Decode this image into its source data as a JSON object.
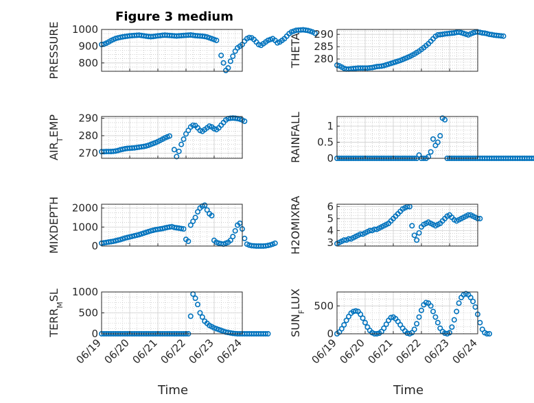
{
  "figure": {
    "title": "Figure 3 medium",
    "xlabel": "Time"
  },
  "style": {
    "marker_color": "#0072bd",
    "axis_color": "#262626",
    "grid_color": "#b0b0b0"
  },
  "chart_data": [
    {
      "type": "scatter",
      "ylabel": "PRESSURE",
      "xlim": [
        "06/19",
        "06/24"
      ],
      "ylim": [
        750,
        1000
      ],
      "yticks": [
        800,
        900,
        1000
      ],
      "x_start": "06/19",
      "x_step_days": 0.0833,
      "values": [
        910,
        912,
        918,
        925,
        933,
        940,
        946,
        950,
        953,
        956,
        958,
        960,
        962,
        963,
        964,
        965,
        966,
        964,
        962,
        960,
        958,
        957,
        958,
        960,
        962,
        963,
        965,
        966,
        965,
        964,
        963,
        962,
        961,
        962,
        963,
        964,
        965,
        966,
        967,
        965,
        963,
        962,
        961,
        960,
        958,
        955,
        950,
        945,
        940,
        935,
        null,
        845,
        800,
        755,
        770,
        810,
        840,
        870,
        890,
        900,
        910,
        930,
        945,
        952,
        950,
        940,
        925,
        910,
        905,
        915,
        925,
        935,
        940,
        945,
        935,
        920,
        925,
        935,
        945,
        960,
        975,
        985,
        990,
        995,
        996,
        997,
        998,
        996,
        994,
        990,
        985,
        978
      ]
    },
    {
      "type": "scatter",
      "ylabel": "THETA",
      "xlim": [
        "06/19",
        "06/24"
      ],
      "ylim": [
        275,
        292
      ],
      "yticks": [
        280,
        285,
        290
      ],
      "x_start": "06/19",
      "x_step_days": 0.0833,
      "values": [
        277.5,
        277.2,
        276.7,
        276.2,
        275.9,
        275.9,
        276.0,
        276.1,
        276.2,
        276.3,
        276.3,
        276.3,
        276.3,
        276.3,
        276.4,
        276.5,
        276.7,
        276.9,
        277.0,
        277.1,
        277.3,
        277.6,
        277.9,
        278.2,
        278.5,
        278.8,
        279.1,
        279.4,
        279.8,
        280.2,
        280.6,
        281.0,
        281.5,
        282.0,
        282.6,
        283.2,
        283.9,
        284.6,
        285.4,
        286.2,
        287.2,
        288.2,
        289.2,
        289.8,
        289.9,
        290.0,
        290.2,
        290.3,
        290.4,
        290.5,
        290.6,
        290.8,
        290.9,
        290.7,
        290.4,
        290.1,
        289.8,
        290.2,
        290.6,
        290.9,
        291.0,
        290.8,
        290.6,
        290.5,
        290.3,
        290.0,
        289.9,
        289.7,
        289.6,
        289.5,
        289.4,
        289.3
      ]
    },
    {
      "type": "scatter",
      "ylabel": "AIR_TEMP",
      "xlim": [
        "06/19",
        "06/24"
      ],
      "ylim": [
        267,
        291
      ],
      "yticks": [
        270,
        280,
        290
      ],
      "x_start": "06/19",
      "x_step_days": 0.0833,
      "values": [
        270.8,
        270.8,
        270.9,
        270.9,
        270.9,
        271.0,
        271.2,
        271.5,
        271.9,
        272.2,
        272.5,
        272.7,
        272.8,
        272.9,
        273.0,
        273.2,
        273.4,
        273.6,
        273.8,
        274.1,
        274.5,
        275.0,
        275.5,
        276.0,
        276.6,
        277.3,
        278.0,
        278.7,
        279.3,
        279.8,
        null,
        272.0,
        268.0,
        271.0,
        275.0,
        278.0,
        281.0,
        283.0,
        285.0,
        286.0,
        285.8,
        284.5,
        283.0,
        282.5,
        283.5,
        284.5,
        285.5,
        285.0,
        284.0,
        283.5,
        284.5,
        286.0,
        287.5,
        289.0,
        289.8,
        290.0,
        290.1,
        290.0,
        289.8,
        289.5,
        289.0,
        288.3
      ]
    },
    {
      "type": "scatter",
      "ylabel": "RAINFALL",
      "xlim": [
        "06/19",
        "06/24"
      ],
      "ylim": [
        0,
        1.3
      ],
      "yticks": [
        0,
        0.5,
        1
      ],
      "x_start": "06/19",
      "x_step_days": 0.0833,
      "values": [
        0,
        0,
        0,
        0,
        0,
        0,
        0,
        0,
        0,
        0,
        0,
        0,
        0,
        0,
        0,
        0,
        0,
        0,
        0,
        0,
        0,
        0,
        0,
        0,
        0,
        0,
        0,
        0,
        0,
        0,
        0,
        0,
        0,
        0,
        0,
        0.1,
        0,
        0,
        0,
        0.05,
        0.2,
        0.6,
        0.4,
        0.5,
        0.7,
        1.25,
        1.2,
        0,
        0,
        0,
        0,
        0,
        0,
        0,
        0,
        0,
        0,
        0,
        0,
        0,
        0,
        0,
        0,
        0,
        0,
        0,
        0,
        0,
        0,
        0,
        0,
        0,
        0,
        0,
        0,
        0,
        0,
        0,
        0,
        0,
        0,
        0,
        0,
        0,
        0,
        0,
        0,
        0,
        0,
        0,
        0,
        0,
        0,
        0,
        0,
        0,
        0,
        0
      ]
    },
    {
      "type": "scatter",
      "ylabel": "MIXDEPTH",
      "xlim": [
        "06/19",
        "06/24"
      ],
      "ylim": [
        0,
        2200
      ],
      "yticks": [
        0,
        1000,
        2000
      ],
      "x_start": "06/19",
      "x_step_days": 0.0833,
      "values": [
        150,
        170,
        190,
        210,
        230,
        250,
        280,
        310,
        340,
        380,
        420,
        450,
        480,
        510,
        540,
        570,
        600,
        640,
        680,
        720,
        760,
        800,
        830,
        860,
        880,
        900,
        920,
        950,
        980,
        1000,
        1020,
        980,
        960,
        940,
        920,
        900,
        350,
        250,
        1100,
        1300,
        1500,
        1800,
        2000,
        2100,
        2150,
        1900,
        1700,
        1600,
        300,
        200,
        150,
        120,
        100,
        150,
        200,
        300,
        500,
        800,
        1100,
        1200,
        900,
        400,
        100,
        50,
        20,
        10,
        0,
        0,
        0,
        0,
        10,
        30,
        60,
        100,
        150
      ]
    },
    {
      "type": "scatter",
      "ylabel": "H2OMIXRA",
      "xlim": [
        "06/19",
        "06/24"
      ],
      "ylim": [
        2.7,
        6.2
      ],
      "yticks": [
        3,
        4,
        5,
        6
      ],
      "x_start": "06/19",
      "x_step_days": 0.0833,
      "values": [
        2.9,
        3.0,
        3.1,
        3.2,
        3.2,
        3.3,
        3.3,
        3.4,
        3.5,
        3.6,
        3.7,
        3.7,
        3.8,
        3.9,
        4.0,
        4.0,
        4.1,
        4.1,
        4.2,
        4.3,
        4.4,
        4.5,
        4.6,
        4.8,
        5.0,
        5.2,
        5.4,
        5.6,
        5.8,
        5.9,
        6.0,
        6.0,
        4.4,
        3.6,
        3.2,
        3.8,
        4.3,
        4.5,
        4.6,
        4.7,
        4.6,
        4.5,
        4.4,
        4.5,
        4.6,
        4.8,
        5.0,
        5.2,
        5.3,
        5.1,
        4.9,
        4.8,
        4.9,
        5.0,
        5.1,
        5.2,
        5.3,
        5.3,
        5.2,
        5.1,
        5.0,
        5.0
      ]
    },
    {
      "type": "scatter",
      "ylabel": "TERR_MSL",
      "xlim": [
        "06/19",
        "06/24"
      ],
      "ylim": [
        0,
        1000
      ],
      "yticks": [
        0,
        500,
        1000
      ],
      "x_start": "06/19",
      "x_step_days": 0.0833,
      "values": [
        0,
        0,
        0,
        0,
        0,
        0,
        0,
        0,
        0,
        0,
        0,
        0,
        0,
        0,
        0,
        0,
        0,
        0,
        0,
        0,
        0,
        0,
        0,
        0,
        0,
        0,
        0,
        0,
        0,
        0,
        0,
        0,
        0,
        0,
        0,
        0,
        0,
        0,
        420,
        950,
        850,
        700,
        500,
        400,
        300,
        250,
        200,
        170,
        140,
        120,
        100,
        80,
        60,
        40,
        30,
        20,
        10,
        5,
        0,
        0,
        0,
        0,
        0,
        0,
        0,
        0,
        0,
        0,
        0,
        0,
        0,
        0
      ]
    },
    {
      "type": "scatter",
      "ylabel": "SUN_FLUX",
      "xlim": [
        "06/19",
        "06/24"
      ],
      "ylim": [
        0,
        750
      ],
      "yticks": [
        0,
        500
      ],
      "x_start": "06/19",
      "x_step_days": 0.0833,
      "values": [
        0,
        30,
        90,
        160,
        240,
        310,
        370,
        400,
        410,
        400,
        350,
        280,
        200,
        120,
        60,
        20,
        0,
        0,
        10,
        40,
        100,
        170,
        240,
        290,
        300,
        270,
        220,
        160,
        100,
        50,
        10,
        0,
        20,
        80,
        180,
        300,
        420,
        520,
        560,
        550,
        500,
        400,
        300,
        200,
        100,
        40,
        10,
        0,
        20,
        120,
        250,
        400,
        550,
        650,
        700,
        720,
        700,
        650,
        580,
        480,
        350,
        200,
        80,
        20,
        0,
        0
      ]
    }
  ]
}
